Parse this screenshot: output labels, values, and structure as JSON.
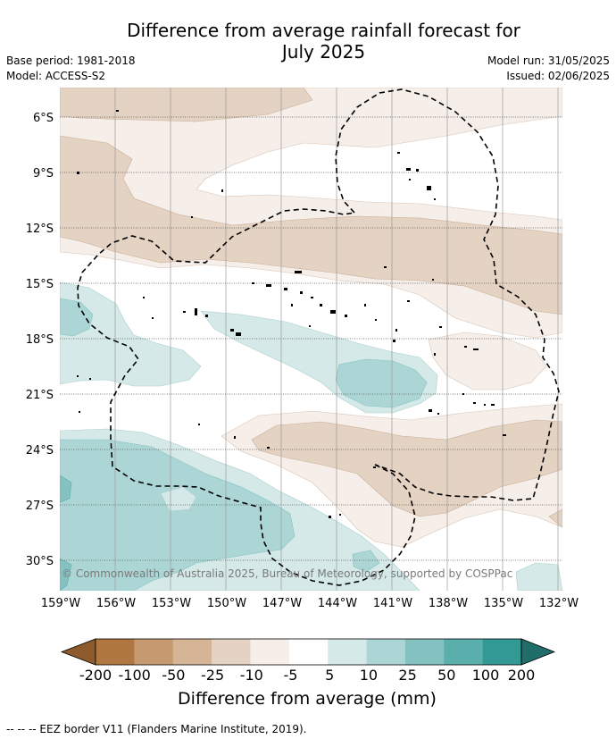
{
  "header": {
    "title_line1": "Difference from average rainfall forecast for",
    "title_line2": "July 2025",
    "base_period": "Base period: 1981-2018",
    "model": "Model: ACCESS-S2",
    "model_run": "Model run: 31/05/2025",
    "issued": "Issued: 02/06/2025"
  },
  "map": {
    "lat_labels": [
      "6°S",
      "9°S",
      "12°S",
      "15°S",
      "18°S",
      "21°S",
      "24°S",
      "27°S",
      "30°S"
    ],
    "lon_labels": [
      "159°W",
      "156°W",
      "153°W",
      "150°W",
      "147°W",
      "144°W",
      "141°W",
      "138°W",
      "135°W",
      "132°W"
    ],
    "attribution": "© Commonwealth of Australia 2025, Bureau of Meteorology, supported by COSPPac"
  },
  "colorbar": {
    "tick_labels": [
      "-200",
      "-100",
      "-50",
      "-25",
      "-10",
      "-5",
      "5",
      "10",
      "25",
      "50",
      "100",
      "200"
    ],
    "colors": [
      "#8c5a2b",
      "#b07840",
      "#c69a70",
      "#d6b596",
      "#e4d2c2",
      "#f5eee9",
      "#ffffff",
      "#d4e9e8",
      "#acd6d5",
      "#84c2c1",
      "#5aaeab",
      "#329994",
      "#1f6e6a"
    ],
    "title": "Difference from average (mm)"
  },
  "legend": {
    "eez_label": "-- -- -- EEZ border V11 (Flanders Marine Institute, 2019)."
  }
}
